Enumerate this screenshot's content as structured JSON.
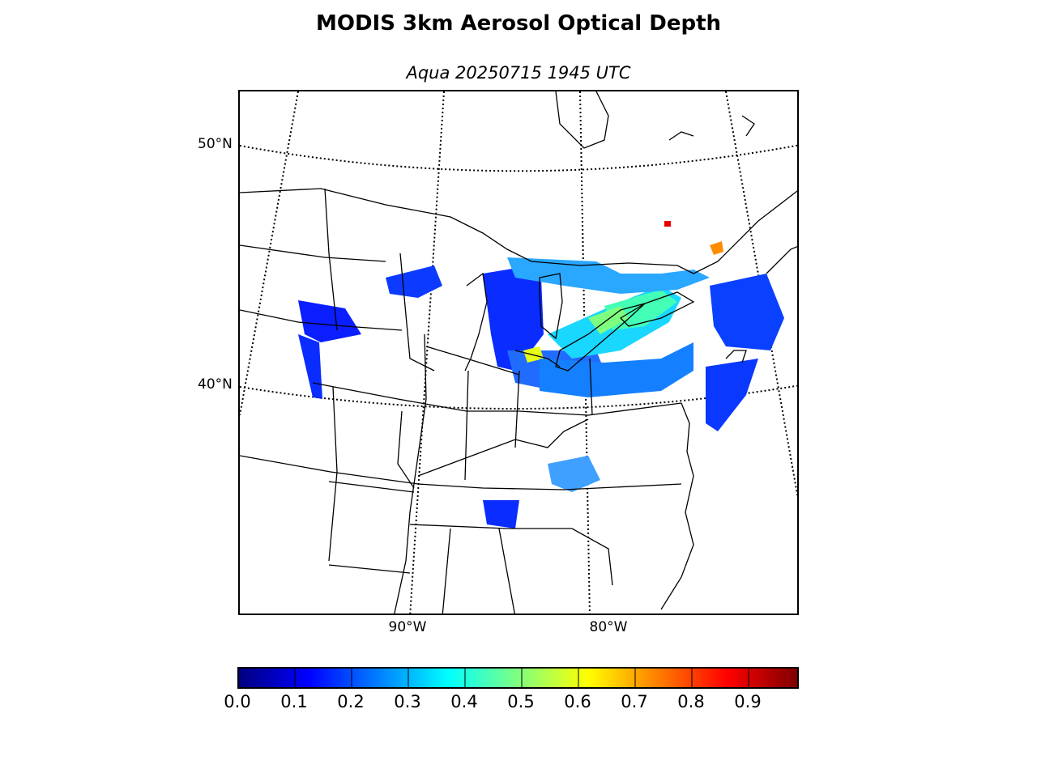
{
  "title": "MODIS 3km Aerosol Optical Depth",
  "subtitle": "Aqua 20250715 1945 UTC",
  "map": {
    "lat_labels": [
      "50°N",
      "40°N"
    ],
    "lon_labels": [
      "90°W",
      "80°W"
    ]
  },
  "colorbar": {
    "colormap": "jet",
    "range": [
      0.0,
      0.99
    ],
    "tick_labels": [
      "0.0",
      "0.1",
      "0.2",
      "0.3",
      "0.4",
      "0.5",
      "0.6",
      "0.7",
      "0.8",
      "0.9"
    ]
  },
  "colors": {
    "jet": [
      "#00007f",
      "#0000ff",
      "#007fff",
      "#00ffff",
      "#7fff7f",
      "#ffff00",
      "#ff7f00",
      "#ff0000",
      "#7f0000"
    ]
  }
}
